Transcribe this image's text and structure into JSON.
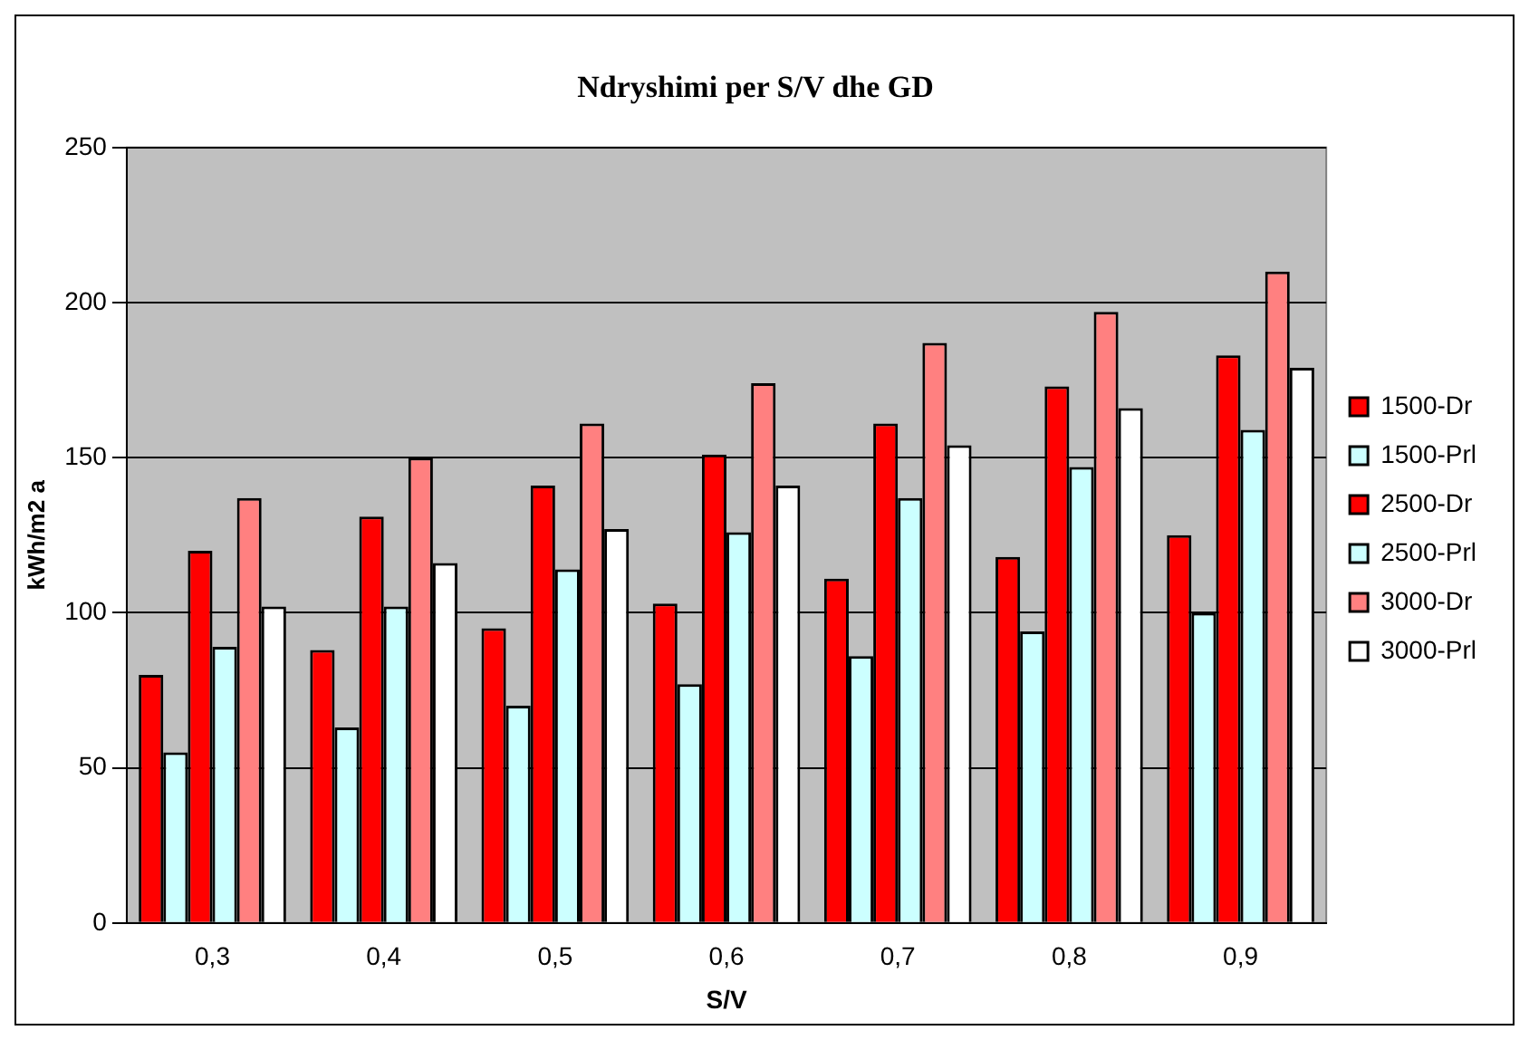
{
  "chart_data": {
    "type": "bar",
    "title": "Ndryshimi per S/V dhe GD",
    "xlabel": "S/V",
    "ylabel": "kWh/m2 a",
    "categories": [
      "0,3",
      "0,4",
      "0,5",
      "0,6",
      "0,7",
      "0,8",
      "0,9"
    ],
    "series": [
      {
        "name": "1500-Dr",
        "color": "#ff0000",
        "values": [
          80,
          88,
          95,
          103,
          111,
          118,
          125
        ]
      },
      {
        "name": "1500-Prl",
        "color": "#ccffff",
        "values": [
          55,
          63,
          70,
          77,
          86,
          94,
          100
        ]
      },
      {
        "name": "2500-Dr",
        "color": "#ff0000",
        "values": [
          120,
          131,
          141,
          151,
          161,
          173,
          183
        ]
      },
      {
        "name": "2500-Prl",
        "color": "#ccffff",
        "values": [
          89,
          102,
          114,
          126,
          137,
          147,
          159
        ]
      },
      {
        "name": "3000-Dr",
        "color": "#ff8080",
        "values": [
          137,
          150,
          161,
          174,
          187,
          197,
          210
        ]
      },
      {
        "name": "3000-Prl",
        "color": "#ffffff",
        "values": [
          102,
          116,
          127,
          141,
          154,
          166,
          179
        ]
      }
    ],
    "ylim": [
      0,
      250
    ],
    "yticks": [
      0,
      50,
      100,
      150,
      200,
      250
    ],
    "grid": "y",
    "legend": "right"
  }
}
